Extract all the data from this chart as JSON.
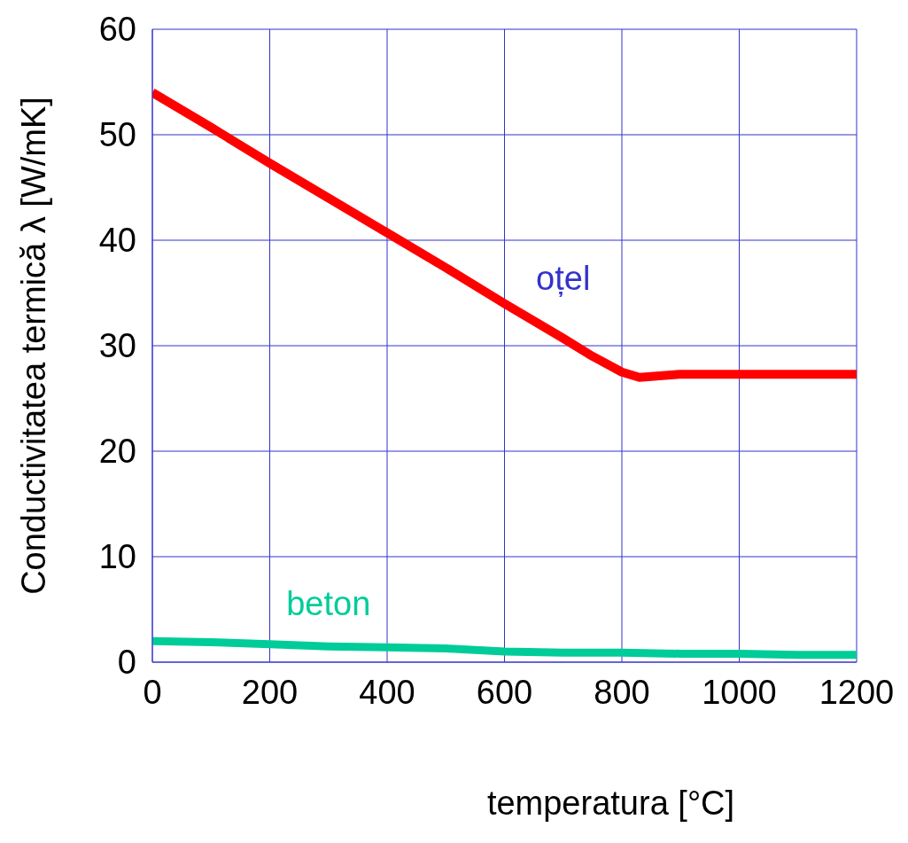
{
  "chart_data": {
    "type": "line",
    "xlabel": "temperatura [°C]",
    "ylabel": "Conductivitatea termică  λ  [W/mK]",
    "xlim": [
      0,
      1200
    ],
    "xticks": [
      0,
      200,
      400,
      600,
      800,
      1000,
      1200
    ],
    "ylim": [
      0,
      60
    ],
    "yticks": [
      0,
      10,
      20,
      30,
      40,
      50,
      60
    ],
    "grid": true,
    "marker": "none",
    "line_style": "solid",
    "series": [
      {
        "name": "oțel",
        "color": "#ff0000",
        "x": [
          0,
          100,
          200,
          300,
          400,
          500,
          600,
          700,
          750,
          800,
          830,
          900,
          1000,
          1100,
          1200
        ],
        "values": [
          54,
          50.7,
          47.3,
          44,
          40.7,
          37.4,
          34,
          30.7,
          29,
          27.5,
          27,
          27.3,
          27.3,
          27.3,
          27.3
        ]
      },
      {
        "name": "beton",
        "color": "#00cc99",
        "x": [
          0,
          100,
          200,
          300,
          400,
          500,
          600,
          700,
          800,
          900,
          1000,
          1100,
          1200
        ],
        "values": [
          2,
          1.9,
          1.7,
          1.5,
          1.4,
          1.3,
          1,
          0.9,
          0.9,
          0.8,
          0.8,
          0.7,
          0.7
        ]
      }
    ]
  }
}
